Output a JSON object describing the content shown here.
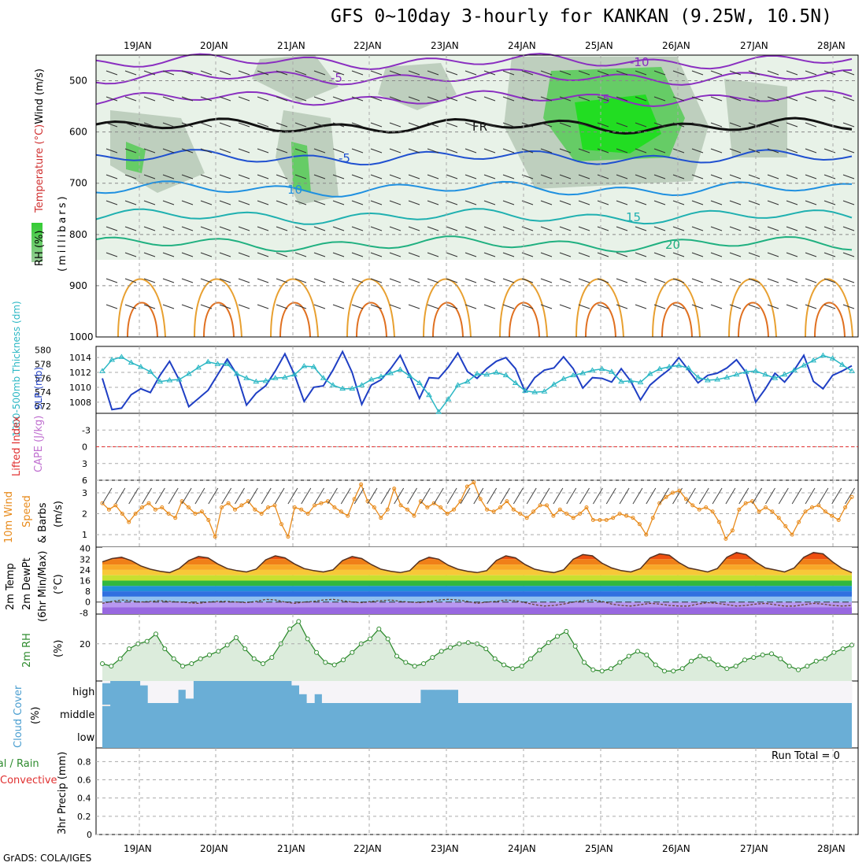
{
  "title": "GFS 0~10day 3-hourly for KANKAN (9.25W, 10.5N)",
  "credit": "GrADS: COLA/IGES",
  "dates": [
    "19JAN",
    "20JAN",
    "21JAN",
    "22JAN",
    "23JAN",
    "24JAN",
    "25JAN",
    "26JAN",
    "27JAN",
    "28JAN"
  ],
  "labels": {
    "upper_wind": "Wind (m/s)",
    "upper_temp": "Temperature (°C)",
    "upper_rh": "RH (%)",
    "upper_pressure": "(millibars)",
    "thickness": "1000-500mb Thickness (dm)",
    "slp": "SLP (mb)",
    "lifted": "Lifted Index",
    "cape": "CAPE (J/kg)",
    "wind10_a": "10m Wind",
    "wind10_b": "Speed",
    "wind10_c": "& Barbs",
    "wind10_d": "(m/s)",
    "temp_a": "2m Temp",
    "temp_b": "2m DewPt",
    "temp_c": "(6hr Min/Max)",
    "temp_d": "(°C)",
    "rh2m": "2m RH",
    "rh_unit": "(%)",
    "cloud": "Cloud Cover",
    "cloud_unit": "(%)",
    "cc_high": "high",
    "cc_middle": "middle",
    "cc_low": "low",
    "precip_a": "Total / Rain",
    "precip_b": "Convective",
    "precip_c": "3hr Precip (mm)",
    "run_total": "Run Total = 0",
    "fr": "FR"
  },
  "colors": {
    "slp": "#1f3fc4",
    "thickness": "#2ab7c4",
    "wind10": "#e88a1a",
    "rh2m": "#2e8b2e",
    "cloud": "#6aaed6",
    "cloud_clear": "#f6f4f8",
    "lifted": "#e03030",
    "cape": "#c070d0"
  },
  "chart_data": [
    {
      "panel": "upper_air",
      "type": "contour",
      "y_levels_mb": [
        500,
        600,
        700,
        800,
        900,
        1000
      ],
      "ylim": [
        1000,
        450
      ],
      "temperature_contours_c": [
        -10,
        -5,
        -5,
        10,
        15,
        20,
        15,
        20
      ],
      "freezing_label": "FR",
      "rh_shading_thresholds_pct": [
        70,
        80,
        90
      ]
    },
    {
      "panel": "thickness_slp",
      "type": "line",
      "thickness_ticks_dm": [
        572,
        574,
        576,
        578,
        580
      ],
      "slp_ticks_mb": [
        1008,
        1010,
        1012,
        1014
      ],
      "ylim_slp": [
        1006.5,
        1015.5
      ],
      "slp_mb": [
        1011.2,
        1007.0,
        1007.2,
        1009.0,
        1009.8,
        1009.3,
        1011.6,
        1013.5,
        1011.0,
        1007.4,
        1008.5,
        1009.6,
        1011.7,
        1013.8,
        1011.7,
        1007.6,
        1009.2,
        1010.2,
        1012.2,
        1014.5,
        1011.7,
        1008.1,
        1010.0,
        1010.2,
        1012.3,
        1014.8,
        1012.0,
        1007.7,
        1010.3,
        1011.0,
        1012.5,
        1014.3,
        1011.5,
        1008.5,
        1011.3,
        1011.2,
        1012.7,
        1014.6,
        1012.1,
        1011.2,
        1012.5,
        1013.5,
        1014.0,
        1012.5,
        1009.4,
        1011.3,
        1012.3,
        1012.6,
        1014.1,
        1012.5,
        1009.9,
        1011.3,
        1011.2,
        1010.7,
        1012.5,
        1010.8,
        1008.3,
        1010.3,
        1011.4,
        1012.4,
        1014.0,
        1012.3,
        1010.6,
        1011.6,
        1011.9,
        1012.6,
        1013.7,
        1012.0,
        1008.0,
        1009.8,
        1011.9,
        1010.7,
        1012.3,
        1014.3,
        1010.8,
        1009.8,
        1011.6,
        1012.2,
        1012.9
      ],
      "thickness_dm": [
        577.0,
        578.6,
        579.0,
        578.2,
        577.6,
        576.9,
        575.5,
        575.7,
        575.8,
        576.6,
        577.5,
        578.3,
        578.0,
        578.0,
        576.6,
        576.0,
        575.5,
        575.6,
        576.0,
        576.1,
        576.5,
        577.7,
        577.6,
        576.0,
        575.0,
        574.5,
        574.5,
        575.0,
        575.8,
        576.2,
        576.7,
        577.2,
        576.3,
        575.3,
        573.6,
        571.2,
        573.0,
        575.0,
        575.5,
        576.6,
        576.5,
        576.8,
        576.4,
        575.3,
        574.2,
        574.0,
        574.1,
        575.1,
        575.9,
        576.4,
        576.7,
        577.1,
        577.3,
        576.9,
        575.5,
        575.6,
        575.4,
        576.6,
        577.3,
        577.6,
        577.8,
        577.4,
        576.1,
        575.7,
        575.8,
        576.1,
        576.5,
        576.9,
        577.0,
        576.5,
        576.0,
        576.5,
        577.1,
        577.8,
        578.5,
        579.2,
        578.8,
        577.9,
        577.0
      ]
    },
    {
      "panel": "stability",
      "type": "line",
      "lifted_index_ticks": [
        -3,
        0,
        3,
        6
      ],
      "cape_ticks": [],
      "zero_line": 0
    },
    {
      "panel": "wind10m",
      "type": "line",
      "y_ticks": [
        1,
        2,
        3
      ],
      "ylim": [
        0.4,
        3.6
      ],
      "speed_ms": [
        2.5,
        2.2,
        2.4,
        2.0,
        1.6,
        2.0,
        2.3,
        2.5,
        2.2,
        2.3,
        2.0,
        1.8,
        2.6,
        2.3,
        2.0,
        2.1,
        1.7,
        0.9,
        2.3,
        2.5,
        2.2,
        2.4,
        2.6,
        2.2,
        2.0,
        2.3,
        2.4,
        1.5,
        0.9,
        2.3,
        2.2,
        2.0,
        2.4,
        2.5,
        2.6,
        2.3,
        2.1,
        1.9,
        2.7,
        3.4,
        2.6,
        2.3,
        1.8,
        2.2,
        3.2,
        2.4,
        2.2,
        1.9,
        2.6,
        2.3,
        2.5,
        2.3,
        2.0,
        2.2,
        2.6,
        3.3,
        3.5,
        2.7,
        2.2,
        2.1,
        2.3,
        2.6,
        2.2,
        2.0,
        1.8,
        2.1,
        2.4,
        2.4,
        1.9,
        2.2,
        2.0,
        1.8,
        2.0,
        2.3,
        1.7,
        1.7,
        1.7,
        1.8,
        2.0,
        1.9,
        1.8,
        1.5,
        1.0,
        1.8,
        2.5,
        2.8,
        3.0,
        3.1,
        2.7,
        2.4,
        2.2,
        2.3,
        2.1,
        1.6,
        0.8,
        1.2,
        2.2,
        2.5,
        2.6,
        2.1,
        2.3,
        2.1,
        1.8,
        1.4,
        1.0,
        1.6,
        2.1,
        2.3,
        2.4,
        2.1,
        1.9,
        1.7,
        2.3,
        2.8
      ]
    },
    {
      "panel": "temp2m",
      "type": "area",
      "y_ticks": [
        -8,
        0,
        8,
        16,
        24,
        32,
        40
      ],
      "ylim": [
        -9,
        41
      ],
      "temp_c": [
        30.0,
        32.5,
        33.5,
        31.0,
        27.0,
        24.5,
        23.0,
        22.0,
        25.0,
        31.0,
        34.0,
        33.0,
        28.5,
        25.0,
        23.5,
        22.5,
        24.5,
        31.5,
        34.5,
        33.0,
        28.5,
        25.0,
        23.5,
        22.5,
        24.0,
        31.0,
        34.0,
        32.5,
        28.0,
        24.5,
        23.0,
        22.0,
        23.5,
        30.5,
        33.5,
        32.0,
        27.5,
        24.5,
        23.0,
        22.0,
        23.5,
        31.0,
        34.5,
        33.0,
        28.0,
        24.5,
        23.0,
        22.0,
        24.0,
        32.0,
        35.5,
        34.5,
        29.0,
        25.5,
        23.5,
        22.5,
        25.0,
        33.0,
        36.0,
        35.0,
        29.5,
        25.5,
        24.0,
        22.5,
        25.0,
        33.5,
        37.0,
        35.5,
        30.0,
        25.5,
        24.0,
        22.5,
        25.5,
        33.5,
        37.0,
        36.0,
        30.0,
        25.0,
        22.0
      ],
      "dewpoint_c": [
        -1.0,
        0.5,
        1.5,
        1.0,
        0.0,
        0.5,
        1.0,
        0.5,
        0.0,
        -0.5,
        -1.0,
        0.0,
        0.5,
        0.5,
        0.0,
        -0.5,
        0.5,
        2.0,
        1.5,
        0.0,
        -1.0,
        0.0,
        0.5,
        1.5,
        2.0,
        1.0,
        0.0,
        -0.5,
        0.5,
        1.0,
        1.5,
        0.5,
        0.0,
        -0.5,
        0.5,
        1.5,
        2.0,
        1.5,
        0.5,
        -1.0,
        0.0,
        0.5,
        1.5,
        1.0,
        -0.5,
        -2.0,
        -3.0,
        -2.5,
        -1.5,
        0.0,
        1.0,
        1.5,
        0.5,
        -1.5,
        -2.5,
        -3.0,
        -2.0,
        -1.0,
        -1.5,
        -2.5,
        -3.0,
        -3.0,
        -1.5,
        -0.5,
        -1.0,
        -2.0,
        -3.0,
        -2.5,
        -1.5,
        -1.0,
        -2.0,
        -3.0,
        -3.0,
        -2.0,
        -1.0,
        -1.5,
        -2.5,
        -3.0,
        -2.5
      ]
    },
    {
      "panel": "rh2m",
      "type": "area",
      "y_ticks": [
        20
      ],
      "ylim": [
        5,
        32
      ],
      "rh_pct": [
        12.0,
        11.0,
        14.0,
        18.0,
        20.0,
        21.0,
        24.0,
        18.0,
        14.0,
        11.0,
        12.0,
        14.0,
        15.5,
        17.0,
        19.5,
        22.5,
        18.0,
        14.0,
        12.0,
        14.5,
        20.0,
        26.0,
        29.0,
        22.0,
        16.5,
        12.5,
        11.5,
        13.5,
        16.5,
        20.0,
        22.0,
        26.0,
        22.0,
        15.0,
        12.5,
        11.0,
        12.0,
        14.5,
        17.0,
        18.5,
        20.0,
        20.5,
        20.0,
        18.0,
        14.0,
        11.5,
        10.0,
        11.0,
        14.0,
        17.5,
        20.5,
        23.0,
        25.0,
        19.0,
        12.5,
        9.5,
        9.0,
        10.0,
        12.5,
        15.0,
        17.0,
        15.5,
        11.5,
        9.0,
        9.0,
        10.0,
        13.0,
        15.0,
        14.0,
        11.5,
        10.0,
        11.0,
        13.5,
        14.5,
        15.5,
        16.0,
        14.0,
        11.0,
        9.5,
        11.0,
        13.0,
        14.0,
        16.5,
        18.0,
        19.5
      ]
    },
    {
      "panel": "cloud_cover",
      "type": "bar",
      "layers": [
        "high",
        "middle",
        "low"
      ],
      "high_pct": [
        90,
        100,
        100,
        100,
        100,
        80,
        0,
        0,
        0,
        0,
        60,
        20,
        100,
        100,
        100,
        100,
        100,
        100,
        100,
        100,
        100,
        100,
        100,
        100,
        100,
        80,
        40,
        0,
        40,
        0,
        0,
        0,
        0,
        0,
        0,
        0,
        0,
        0,
        0,
        0,
        0,
        0,
        60,
        60,
        60,
        60,
        60,
        0,
        0,
        0,
        0,
        0,
        0,
        0,
        0,
        0,
        0,
        0,
        0,
        0,
        0,
        0,
        0,
        0,
        0,
        0,
        0,
        0,
        0,
        0,
        0,
        0,
        0,
        0,
        0,
        0,
        0,
        0,
        0,
        0,
        0,
        0,
        0,
        0,
        0,
        0,
        0,
        0,
        0,
        0,
        0,
        0,
        0,
        0,
        0,
        0,
        0,
        0,
        0
      ],
      "middle_pct": [
        10,
        0,
        0,
        0,
        0,
        0,
        0,
        0,
        0,
        0,
        0,
        0,
        0,
        0,
        0,
        0,
        0,
        0,
        0,
        0,
        0,
        0,
        0,
        0,
        0,
        0,
        0,
        0,
        0,
        0,
        0,
        0,
        0,
        0,
        0,
        0,
        0,
        0,
        0,
        0,
        0,
        0,
        0,
        0,
        0,
        0,
        0,
        0,
        0,
        0,
        0,
        0,
        0,
        0,
        0,
        0,
        0,
        0,
        0,
        0,
        0,
        0,
        0,
        0,
        0,
        0,
        0,
        0,
        0,
        0,
        0,
        0,
        0,
        0,
        0,
        0,
        0,
        0,
        0,
        0,
        0,
        0,
        0,
        0,
        0,
        0,
        0,
        0,
        0,
        0,
        0,
        0,
        0,
        0,
        0,
        0,
        0,
        0,
        0
      ],
      "low_pct": [
        0,
        0,
        0,
        0,
        0,
        0,
        0,
        0,
        0,
        0,
        0,
        0,
        0,
        0,
        0,
        0,
        0,
        0,
        0,
        0,
        0,
        0,
        0,
        0,
        0,
        0,
        0,
        0,
        0,
        0,
        0,
        0,
        0,
        0,
        0,
        0,
        0,
        0,
        0,
        0,
        0,
        0,
        0,
        0,
        0,
        0,
        0,
        0,
        0,
        0,
        0,
        0,
        0,
        0,
        0,
        0,
        0,
        0,
        0,
        0,
        0,
        0,
        0,
        0,
        0,
        0,
        0,
        0,
        0,
        0,
        0,
        0,
        0,
        0,
        0,
        0,
        0,
        0,
        0,
        0,
        0,
        0,
        0,
        0,
        0,
        0,
        0,
        0,
        0,
        0,
        0,
        0,
        0,
        0,
        0,
        0,
        0,
        0,
        0
      ]
    },
    {
      "panel": "precip",
      "type": "bar",
      "y_ticks": [
        0,
        0.2,
        0.4,
        0.6,
        0.8
      ],
      "ylim": [
        0,
        0.95
      ],
      "total_mm": [],
      "convective_mm": []
    }
  ]
}
